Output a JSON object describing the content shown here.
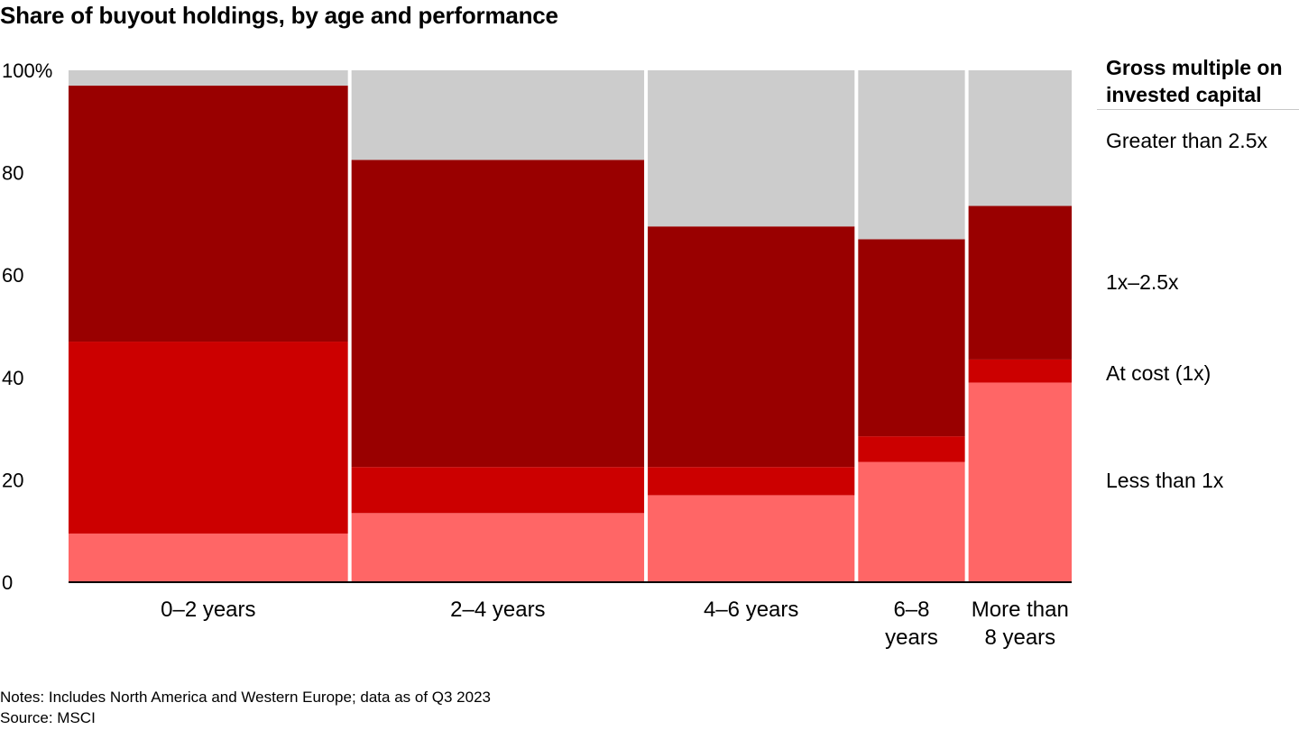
{
  "title": "Share of buyout holdings, by age and performance",
  "legend": {
    "title": "Gross multiple on invested capital",
    "items": [
      "Greater than 2.5x",
      "1x–2.5x",
      "At cost (1x)",
      "Less than 1x"
    ]
  },
  "notes": {
    "line1": "Notes: Includes North America and Western Europe; data as of Q3 2023",
    "line2": "Source: MSCI"
  },
  "colors": {
    "Less than 1x": "#ff6666",
    "At cost (1x)": "#cc0000",
    "1x–2.5x": "#990000",
    "Greater than 2.5x": "#cccccc"
  },
  "chart_data": {
    "type": "bar",
    "subtype": "marimekko (variable-width 100% stacked bar)",
    "title": "Share of buyout holdings, by age and performance",
    "categories": [
      [
        "0–2 years"
      ],
      [
        "2–4 years"
      ],
      [
        "4–6 years"
      ],
      [
        "6–8",
        "years"
      ],
      [
        "More than",
        "8 years"
      ]
    ],
    "category_width_share": [
      0.277,
      0.29,
      0.206,
      0.108,
      0.101
    ],
    "ylim": [
      0,
      100
    ],
    "yticks": [
      "0",
      "20",
      "40",
      "60",
      "80",
      "100%"
    ],
    "series": [
      {
        "name": "Less than 1x",
        "values": [
          9.5,
          13.5,
          17,
          23.5,
          39
        ]
      },
      {
        "name": "At cost (1x)",
        "values": [
          37.5,
          9,
          5.5,
          5,
          4.5
        ]
      },
      {
        "name": "1x–2.5x",
        "values": [
          50,
          60,
          47,
          38.5,
          30
        ]
      },
      {
        "name": "Greater than 2.5x",
        "values": [
          3,
          17.5,
          30.5,
          33,
          26.5
        ]
      }
    ],
    "legend_position": "right"
  }
}
